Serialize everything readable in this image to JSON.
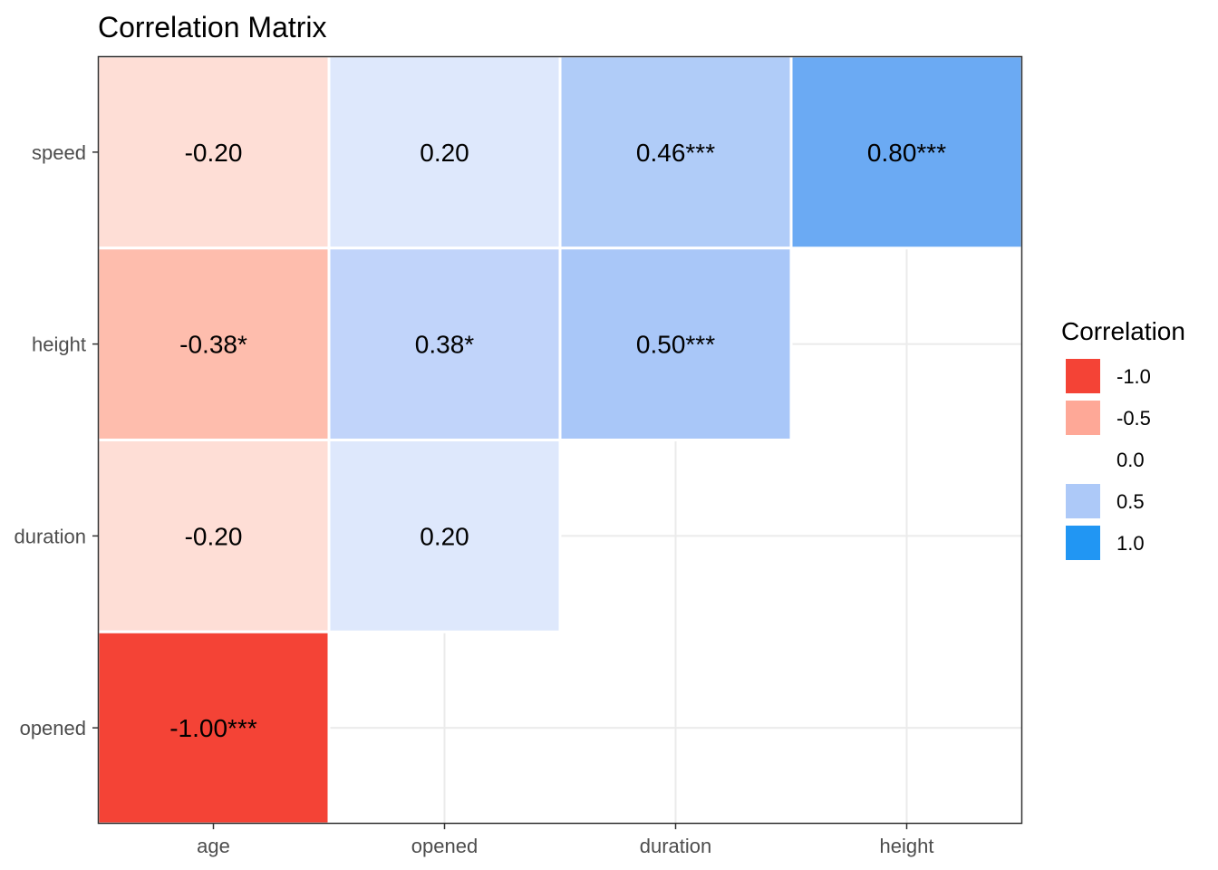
{
  "chart_data": {
    "type": "heatmap",
    "title": "Correlation Matrix",
    "x_categories": [
      "age",
      "opened",
      "duration",
      "height"
    ],
    "y_categories": [
      "speed",
      "height",
      "duration",
      "opened"
    ],
    "cells": [
      {
        "x": "age",
        "y": "speed",
        "value": -0.2,
        "label": "-0.20",
        "color": "#FEDED6"
      },
      {
        "x": "opened",
        "y": "speed",
        "value": 0.2,
        "label": "0.20",
        "color": "#DEE8FC"
      },
      {
        "x": "duration",
        "y": "speed",
        "value": 0.46,
        "label": "0.46***",
        "color": "#B0CCF8"
      },
      {
        "x": "height",
        "y": "speed",
        "value": 0.8,
        "label": "0.80***",
        "color": "#6BAAF3"
      },
      {
        "x": "age",
        "y": "height",
        "value": -0.38,
        "label": "-0.38*",
        "color": "#FEBDAD"
      },
      {
        "x": "opened",
        "y": "height",
        "value": 0.38,
        "label": "0.38*",
        "color": "#C1D4FA"
      },
      {
        "x": "duration",
        "y": "height",
        "value": 0.5,
        "label": "0.50***",
        "color": "#A9C7F8"
      },
      {
        "x": "age",
        "y": "duration",
        "value": -0.2,
        "label": "-0.20",
        "color": "#FEDED6"
      },
      {
        "x": "opened",
        "y": "duration",
        "value": 0.2,
        "label": "0.20",
        "color": "#DEE8FC"
      },
      {
        "x": "age",
        "y": "opened",
        "value": -1.0,
        "label": "-1.00***",
        "color": "#F44336"
      }
    ],
    "legend": {
      "title": "Correlation",
      "placement": "right",
      "items": [
        {
          "label": "-1.0",
          "color": "#F44336"
        },
        {
          "label": "-0.5",
          "color": "#FEA897"
        },
        {
          "label": "0.0",
          "color": "#FFFFFF"
        },
        {
          "label": "0.5",
          "color": "#ADC9F8"
        },
        {
          "label": "1.0",
          "color": "#2196F3"
        }
      ]
    },
    "grid": true
  },
  "colors": {
    "grid": "#EBEBEB",
    "border": "#333333",
    "axis_text": "#4D4D4D"
  }
}
